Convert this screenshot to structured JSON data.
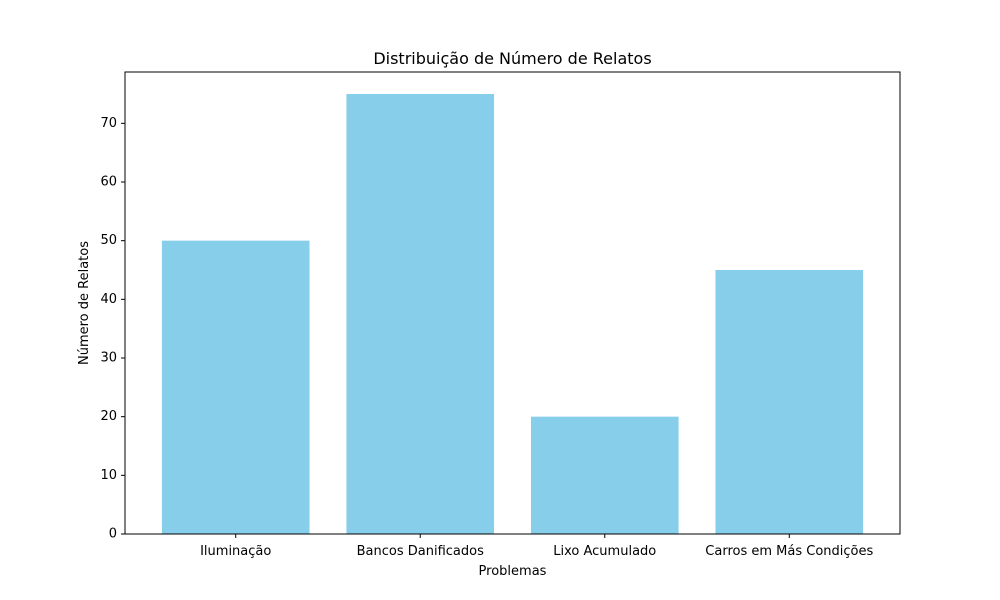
{
  "chart_data": {
    "type": "bar",
    "title": "Distribuição de Número de Relatos",
    "xlabel": "Problemas",
    "ylabel": "Número de Relatos",
    "categories": [
      "Iluminação",
      "Bancos Danificados",
      "Lixo Acumulado",
      "Carros em Más Condições"
    ],
    "values": [
      50,
      75,
      20,
      45
    ],
    "ylim": [
      0,
      78.75
    ],
    "yticks": [
      0,
      10,
      20,
      30,
      40,
      50,
      60,
      70
    ],
    "bar_color": "#87CEEB",
    "grid": false,
    "legend": "none"
  }
}
